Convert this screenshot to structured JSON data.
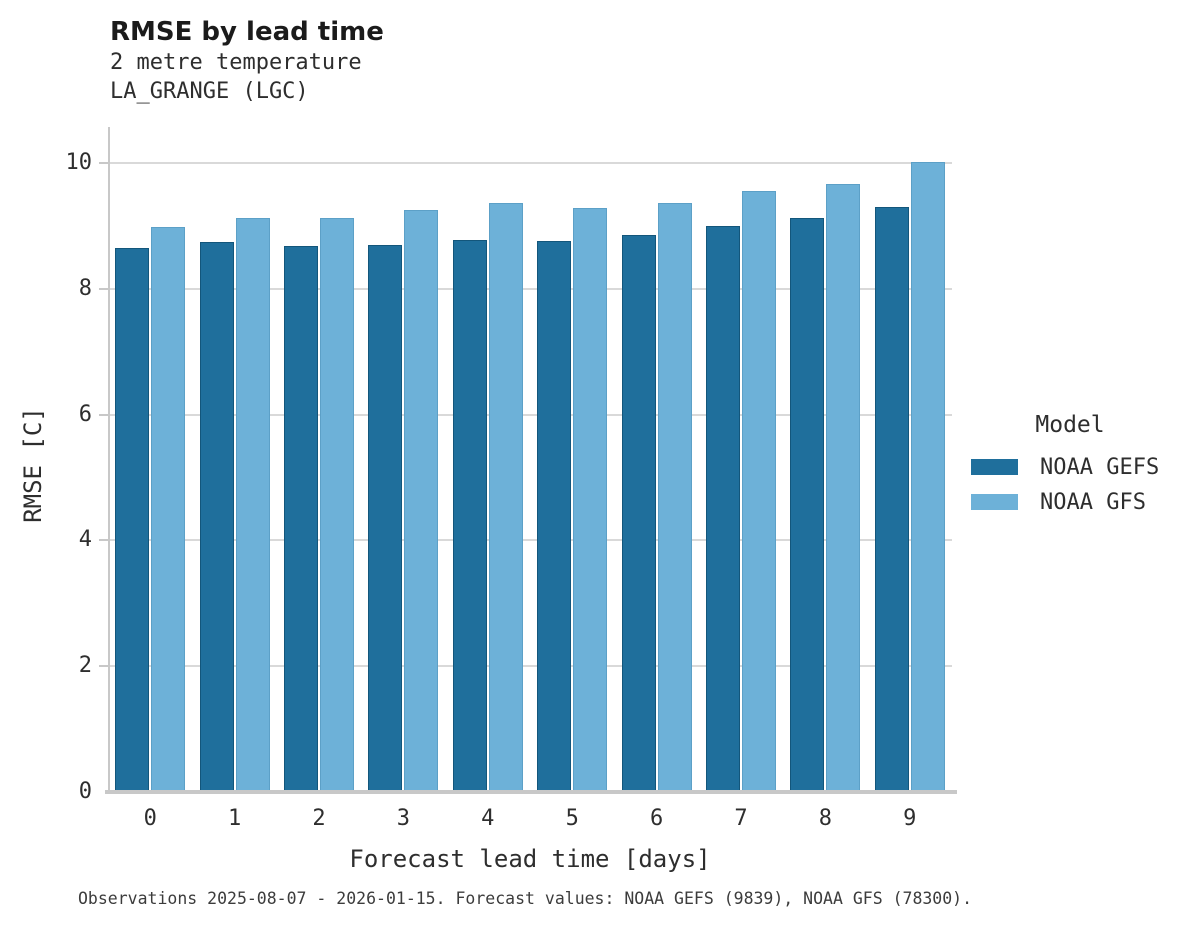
{
  "header": {
    "title": "RMSE by lead time",
    "subtitle_line1": "2 metre temperature",
    "subtitle_line2": "LA_GRANGE (LGC)"
  },
  "legend": {
    "title": "Model",
    "items": [
      {
        "label": "NOAA GEFS",
        "color": "#1f6f9c"
      },
      {
        "label": "NOAA GFS",
        "color": "#6db1d8"
      }
    ]
  },
  "caption": "Observations 2025-08-07 - 2026-01-15. Forecast values: NOAA GEFS (9839), NOAA GFS (78300).",
  "colors": {
    "series_dark": "#1f6f9c",
    "series_light": "#6db1d8",
    "gridline": "#d9d9d9",
    "axis": "#c8c8c8",
    "text": "#2e2e2e"
  },
  "chart_data": {
    "type": "bar",
    "title": "RMSE by lead time",
    "subtitle": "2 metre temperature — LA_GRANGE (LGC)",
    "categories": [
      "0",
      "1",
      "2",
      "3",
      "4",
      "5",
      "6",
      "7",
      "8",
      "9"
    ],
    "series": [
      {
        "name": "NOAA GEFS",
        "color": "#1f6f9c",
        "values": [
          8.63,
          8.72,
          8.67,
          8.68,
          8.76,
          8.74,
          8.83,
          8.98,
          9.1,
          9.29
        ]
      },
      {
        "name": "NOAA GFS",
        "color": "#6db1d8",
        "values": [
          8.97,
          9.11,
          9.11,
          9.23,
          9.35,
          9.27,
          9.34,
          9.53,
          9.65,
          10.0
        ]
      }
    ],
    "xlabel": "Forecast lead time [days]",
    "ylabel": "RMSE [C]",
    "ylim": [
      0,
      10.57
    ],
    "yticks": [
      0,
      2,
      4,
      6,
      8,
      10
    ],
    "grid": true,
    "legend_title": "Model",
    "legend_position": "center right"
  }
}
